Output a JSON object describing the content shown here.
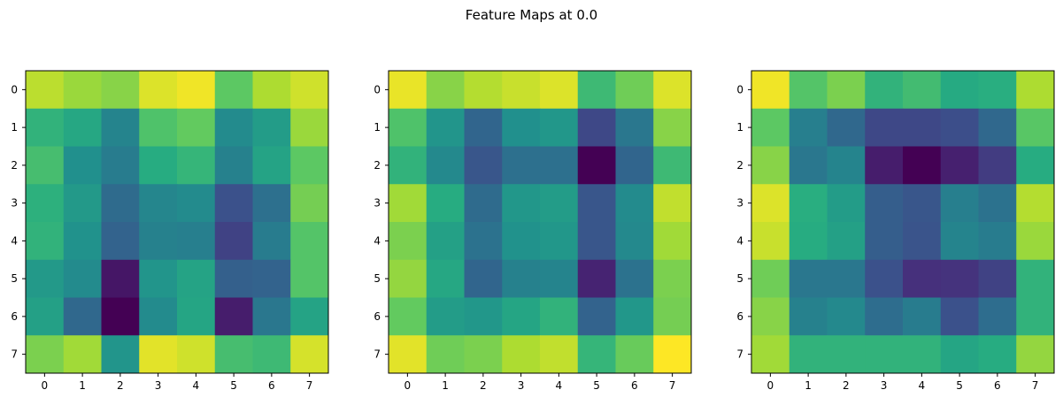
{
  "figure": {
    "title": "Feature Maps at 0.0"
  },
  "chart_data": [
    {
      "type": "heatmap",
      "colormap": "viridis",
      "x_ticks": [
        "0",
        "1",
        "2",
        "3",
        "4",
        "5",
        "6",
        "7"
      ],
      "y_ticks": [
        "0",
        "1",
        "2",
        "3",
        "4",
        "5",
        "6",
        "7"
      ],
      "grid": false,
      "values": [
        [
          0.9,
          0.85,
          0.82,
          0.95,
          0.98,
          0.75,
          0.88,
          0.93
        ],
        [
          0.65,
          0.6,
          0.45,
          0.72,
          0.76,
          0.48,
          0.55,
          0.85
        ],
        [
          0.7,
          0.5,
          0.42,
          0.62,
          0.66,
          0.44,
          0.58,
          0.75
        ],
        [
          0.64,
          0.54,
          0.35,
          0.46,
          0.48,
          0.25,
          0.37,
          0.79
        ],
        [
          0.65,
          0.51,
          0.32,
          0.44,
          0.43,
          0.2,
          0.42,
          0.73
        ],
        [
          0.54,
          0.48,
          0.06,
          0.52,
          0.58,
          0.31,
          0.32,
          0.73
        ],
        [
          0.57,
          0.34,
          0.0,
          0.48,
          0.59,
          0.08,
          0.4,
          0.58
        ],
        [
          0.8,
          0.86,
          0.52,
          0.96,
          0.93,
          0.7,
          0.68,
          0.94
        ]
      ]
    },
    {
      "type": "heatmap",
      "colormap": "viridis",
      "x_ticks": [
        "0",
        "1",
        "2",
        "3",
        "4",
        "5",
        "6",
        "7"
      ],
      "y_ticks": [
        "0",
        "1",
        "2",
        "3",
        "4",
        "5",
        "6",
        "7"
      ],
      "grid": false,
      "values": [
        [
          0.97,
          0.82,
          0.89,
          0.92,
          0.95,
          0.68,
          0.78,
          0.95
        ],
        [
          0.72,
          0.52,
          0.33,
          0.5,
          0.53,
          0.22,
          0.4,
          0.82
        ],
        [
          0.65,
          0.47,
          0.27,
          0.37,
          0.37,
          0.0,
          0.33,
          0.68
        ],
        [
          0.86,
          0.62,
          0.35,
          0.53,
          0.55,
          0.27,
          0.48,
          0.91
        ],
        [
          0.8,
          0.57,
          0.38,
          0.51,
          0.53,
          0.27,
          0.47,
          0.86
        ],
        [
          0.84,
          0.6,
          0.33,
          0.44,
          0.45,
          0.1,
          0.38,
          0.8
        ],
        [
          0.76,
          0.55,
          0.53,
          0.59,
          0.65,
          0.32,
          0.53,
          0.79
        ],
        [
          0.96,
          0.78,
          0.8,
          0.88,
          0.91,
          0.66,
          0.77,
          1.0
        ]
      ]
    },
    {
      "type": "heatmap",
      "colormap": "viridis",
      "x_ticks": [
        "0",
        "1",
        "2",
        "3",
        "4",
        "5",
        "6",
        "7"
      ],
      "y_ticks": [
        "0",
        "1",
        "2",
        "3",
        "4",
        "5",
        "6",
        "7"
      ],
      "grid": false,
      "values": [
        [
          0.98,
          0.73,
          0.8,
          0.65,
          0.69,
          0.61,
          0.63,
          0.88
        ],
        [
          0.75,
          0.43,
          0.34,
          0.22,
          0.22,
          0.24,
          0.34,
          0.74
        ],
        [
          0.82,
          0.4,
          0.45,
          0.08,
          0.0,
          0.09,
          0.18,
          0.62
        ],
        [
          0.95,
          0.63,
          0.55,
          0.3,
          0.27,
          0.43,
          0.38,
          0.89
        ],
        [
          0.92,
          0.62,
          0.57,
          0.3,
          0.26,
          0.45,
          0.42,
          0.85
        ],
        [
          0.78,
          0.4,
          0.4,
          0.25,
          0.14,
          0.15,
          0.2,
          0.65
        ],
        [
          0.82,
          0.44,
          0.47,
          0.36,
          0.42,
          0.25,
          0.36,
          0.65
        ],
        [
          0.86,
          0.65,
          0.65,
          0.65,
          0.65,
          0.59,
          0.62,
          0.84
        ]
      ]
    }
  ]
}
